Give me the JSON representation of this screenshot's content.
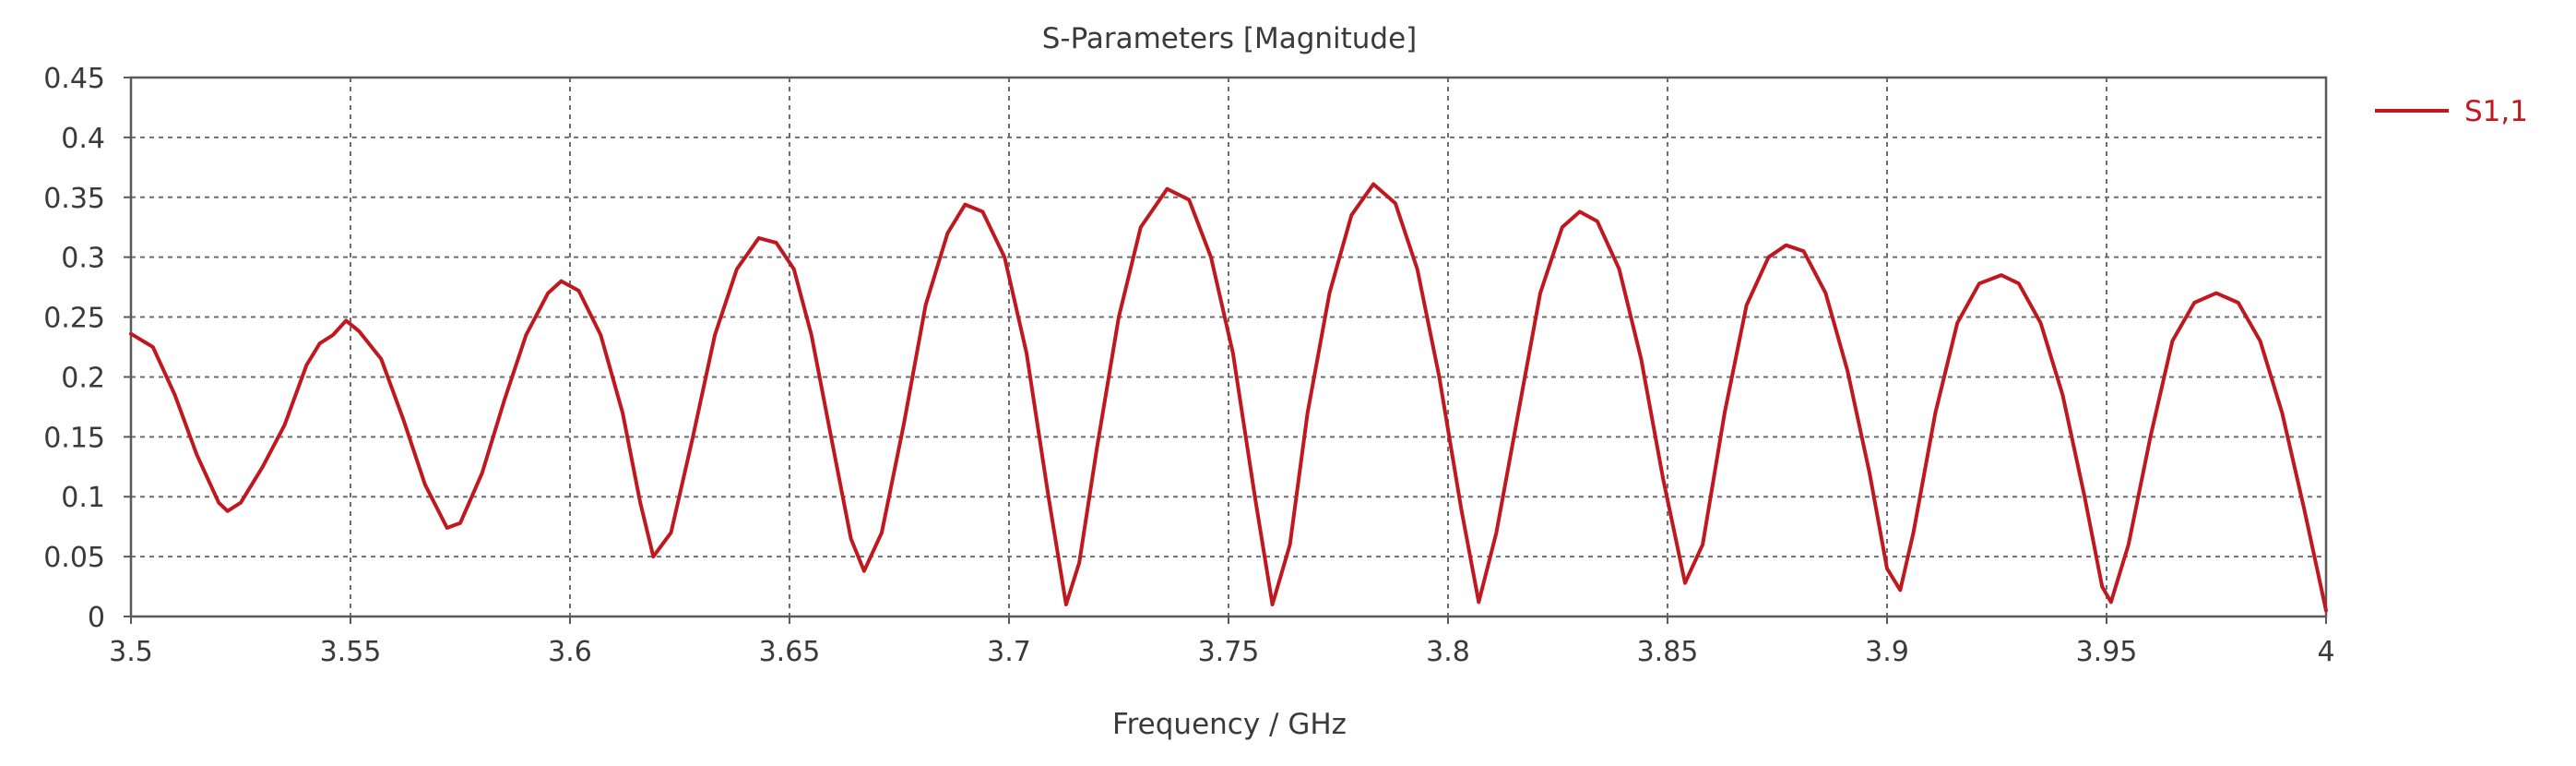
{
  "chart_data": {
    "type": "line",
    "title": "S-Parameters [Magnitude]",
    "xlabel": "Frequency / GHz",
    "ylabel": "",
    "xlim": [
      3.5,
      4.0
    ],
    "ylim": [
      0,
      0.45
    ],
    "x_ticks": [
      3.5,
      3.55,
      3.6,
      3.65,
      3.7,
      3.75,
      3.8,
      3.85,
      3.9,
      3.95,
      4.0
    ],
    "x_tick_labels": [
      "3.5",
      "3.55",
      "3.6",
      "3.65",
      "3.7",
      "3.75",
      "3.8",
      "3.85",
      "3.9",
      "3.95",
      "4"
    ],
    "y_ticks": [
      0,
      0.05,
      0.1,
      0.15,
      0.2,
      0.25,
      0.3,
      0.35,
      0.4,
      0.45
    ],
    "y_tick_labels": [
      "0",
      "0.05",
      "0.1",
      "0.15",
      "0.2",
      "0.25",
      "0.3",
      "0.35",
      "0.4",
      "0.45"
    ],
    "grid": true,
    "legend_position": "right",
    "series": [
      {
        "name": "S1,1",
        "color": "#c0181f",
        "points": [
          [
            3.5,
            0.236
          ],
          [
            3.505,
            0.225
          ],
          [
            3.51,
            0.185
          ],
          [
            3.515,
            0.135
          ],
          [
            3.52,
            0.095
          ],
          [
            3.522,
            0.088
          ],
          [
            3.525,
            0.095
          ],
          [
            3.53,
            0.125
          ],
          [
            3.535,
            0.16
          ],
          [
            3.54,
            0.21
          ],
          [
            3.543,
            0.228
          ],
          [
            3.546,
            0.235
          ],
          [
            3.549,
            0.247
          ],
          [
            3.552,
            0.238
          ],
          [
            3.557,
            0.215
          ],
          [
            3.562,
            0.165
          ],
          [
            3.567,
            0.11
          ],
          [
            3.572,
            0.074
          ],
          [
            3.575,
            0.078
          ],
          [
            3.58,
            0.12
          ],
          [
            3.585,
            0.18
          ],
          [
            3.59,
            0.235
          ],
          [
            3.595,
            0.27
          ],
          [
            3.598,
            0.28
          ],
          [
            3.602,
            0.272
          ],
          [
            3.607,
            0.235
          ],
          [
            3.612,
            0.17
          ],
          [
            3.616,
            0.095
          ],
          [
            3.619,
            0.05
          ],
          [
            3.623,
            0.07
          ],
          [
            3.628,
            0.15
          ],
          [
            3.633,
            0.235
          ],
          [
            3.638,
            0.29
          ],
          [
            3.643,
            0.316
          ],
          [
            3.647,
            0.312
          ],
          [
            3.651,
            0.29
          ],
          [
            3.655,
            0.235
          ],
          [
            3.66,
            0.14
          ],
          [
            3.664,
            0.065
          ],
          [
            3.667,
            0.038
          ],
          [
            3.671,
            0.07
          ],
          [
            3.676,
            0.16
          ],
          [
            3.681,
            0.26
          ],
          [
            3.686,
            0.32
          ],
          [
            3.69,
            0.344
          ],
          [
            3.694,
            0.338
          ],
          [
            3.699,
            0.3
          ],
          [
            3.704,
            0.22
          ],
          [
            3.709,
            0.1
          ],
          [
            3.713,
            0.01
          ],
          [
            3.716,
            0.045
          ],
          [
            3.72,
            0.14
          ],
          [
            3.725,
            0.25
          ],
          [
            3.73,
            0.325
          ],
          [
            3.736,
            0.357
          ],
          [
            3.741,
            0.348
          ],
          [
            3.746,
            0.3
          ],
          [
            3.751,
            0.22
          ],
          [
            3.756,
            0.1
          ],
          [
            3.76,
            0.01
          ],
          [
            3.764,
            0.06
          ],
          [
            3.768,
            0.17
          ],
          [
            3.773,
            0.27
          ],
          [
            3.778,
            0.335
          ],
          [
            3.783,
            0.361
          ],
          [
            3.788,
            0.345
          ],
          [
            3.793,
            0.29
          ],
          [
            3.798,
            0.2
          ],
          [
            3.803,
            0.09
          ],
          [
            3.807,
            0.012
          ],
          [
            3.811,
            0.07
          ],
          [
            3.816,
            0.17
          ],
          [
            3.821,
            0.27
          ],
          [
            3.826,
            0.325
          ],
          [
            3.83,
            0.338
          ],
          [
            3.834,
            0.33
          ],
          [
            3.839,
            0.29
          ],
          [
            3.844,
            0.215
          ],
          [
            3.849,
            0.115
          ],
          [
            3.854,
            0.028
          ],
          [
            3.858,
            0.06
          ],
          [
            3.863,
            0.17
          ],
          [
            3.868,
            0.26
          ],
          [
            3.873,
            0.3
          ],
          [
            3.877,
            0.31
          ],
          [
            3.881,
            0.305
          ],
          [
            3.886,
            0.27
          ],
          [
            3.891,
            0.205
          ],
          [
            3.896,
            0.12
          ],
          [
            3.9,
            0.04
          ],
          [
            3.903,
            0.022
          ],
          [
            3.906,
            0.07
          ],
          [
            3.911,
            0.17
          ],
          [
            3.916,
            0.245
          ],
          [
            3.921,
            0.278
          ],
          [
            3.926,
            0.285
          ],
          [
            3.93,
            0.278
          ],
          [
            3.935,
            0.245
          ],
          [
            3.94,
            0.185
          ],
          [
            3.945,
            0.1
          ],
          [
            3.949,
            0.025
          ],
          [
            3.951,
            0.012
          ],
          [
            3.955,
            0.06
          ],
          [
            3.96,
            0.15
          ],
          [
            3.965,
            0.23
          ],
          [
            3.97,
            0.262
          ],
          [
            3.975,
            0.27
          ],
          [
            3.98,
            0.262
          ],
          [
            3.985,
            0.23
          ],
          [
            3.99,
            0.17
          ],
          [
            3.995,
            0.09
          ],
          [
            4.0,
            0.005
          ]
        ]
      }
    ]
  }
}
